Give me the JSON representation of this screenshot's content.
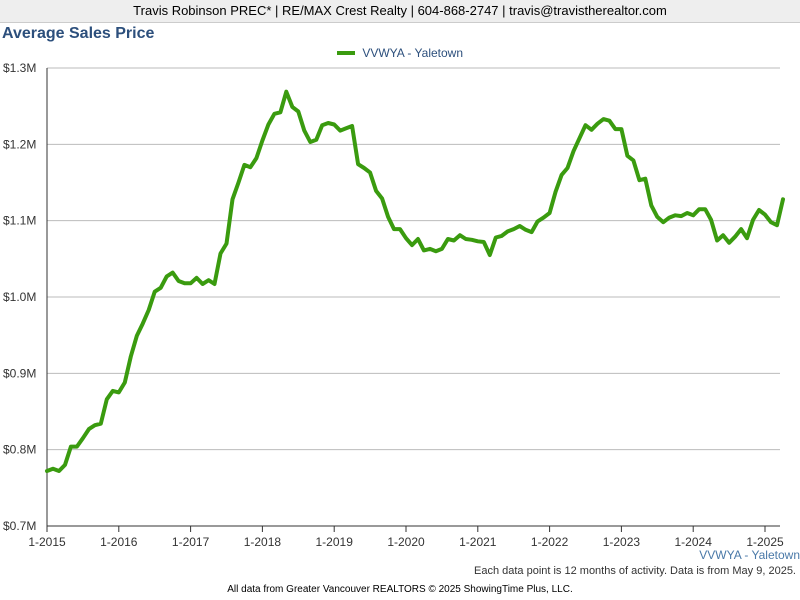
{
  "header": {
    "agent_line": "Travis Robinson PREC* | RE/MAX Crest Realty | 604-868-2747 | travis@travistherealtor.com"
  },
  "footnote": "Each data point is 12 months of activity. Data is from May 9, 2025.",
  "copyright": "All data from Greater Vancouver REALTORS © 2025 ShowingTime Plus, LLC.",
  "series_label": "VVWYA - Yaletown",
  "colors": {
    "series": "#3a9b0f",
    "title": "#2c4f7c",
    "grid": "#bbbbbb",
    "axis": "#333333"
  },
  "chart_data": {
    "type": "line",
    "title": "Average Sales Price",
    "xlabel": "",
    "ylabel": "",
    "legend_position": "top-center",
    "grid": true,
    "ylim": [
      0.7,
      1.3
    ],
    "y_unit": "$M",
    "y_ticks": [
      {
        "value": 0.7,
        "label": "$0.7M"
      },
      {
        "value": 0.8,
        "label": "$0.8M"
      },
      {
        "value": 0.9,
        "label": "$0.9M"
      },
      {
        "value": 1.0,
        "label": "$1.0M"
      },
      {
        "value": 1.1,
        "label": "$1.1M"
      },
      {
        "value": 1.2,
        "label": "$1.2M"
      },
      {
        "value": 1.3,
        "label": "$1.3M"
      }
    ],
    "x_ticks": [
      "1-2015",
      "1-2016",
      "1-2017",
      "1-2018",
      "1-2019",
      "1-2020",
      "1-2021",
      "1-2022",
      "1-2023",
      "1-2024",
      "1-2025"
    ],
    "series": [
      {
        "name": "VVWYA - Yaletown",
        "x": [
          "2015-01",
          "2015-02",
          "2015-03",
          "2015-04",
          "2015-05",
          "2015-06",
          "2015-07",
          "2015-08",
          "2015-09",
          "2015-10",
          "2015-11",
          "2015-12",
          "2016-01",
          "2016-02",
          "2016-03",
          "2016-04",
          "2016-05",
          "2016-06",
          "2016-07",
          "2016-08",
          "2016-09",
          "2016-10",
          "2016-11",
          "2016-12",
          "2017-01",
          "2017-02",
          "2017-03",
          "2017-04",
          "2017-05",
          "2017-06",
          "2017-07",
          "2017-08",
          "2017-09",
          "2017-10",
          "2017-11",
          "2017-12",
          "2018-01",
          "2018-02",
          "2018-03",
          "2018-04",
          "2018-05",
          "2018-06",
          "2018-07",
          "2018-08",
          "2018-09",
          "2018-10",
          "2018-11",
          "2018-12",
          "2019-01",
          "2019-02",
          "2019-03",
          "2019-04",
          "2019-05",
          "2019-06",
          "2019-07",
          "2019-08",
          "2019-09",
          "2019-10",
          "2019-11",
          "2019-12",
          "2020-01",
          "2020-02",
          "2020-03",
          "2020-04",
          "2020-05",
          "2020-06",
          "2020-07",
          "2020-08",
          "2020-09",
          "2020-10",
          "2020-11",
          "2020-12",
          "2021-01",
          "2021-02",
          "2021-03",
          "2021-04",
          "2021-05",
          "2021-06",
          "2021-07",
          "2021-08",
          "2021-09",
          "2021-10",
          "2021-11",
          "2021-12",
          "2022-01",
          "2022-02",
          "2022-03",
          "2022-04",
          "2022-05",
          "2022-06",
          "2022-07",
          "2022-08",
          "2022-09",
          "2022-10",
          "2022-11",
          "2022-12",
          "2023-01",
          "2023-02",
          "2023-03",
          "2023-04",
          "2023-05",
          "2023-06",
          "2023-07",
          "2023-08",
          "2023-09",
          "2023-10",
          "2023-11",
          "2023-12",
          "2024-01",
          "2024-02",
          "2024-03",
          "2024-04",
          "2024-05",
          "2024-06",
          "2024-07",
          "2024-08",
          "2024-09",
          "2024-10",
          "2024-11",
          "2024-12",
          "2025-01",
          "2025-02",
          "2025-03",
          "2025-04"
        ],
        "values": [
          0.772,
          0.775,
          0.772,
          0.78,
          0.804,
          0.804,
          0.815,
          0.827,
          0.832,
          0.834,
          0.866,
          0.877,
          0.875,
          0.888,
          0.922,
          0.949,
          0.965,
          0.983,
          1.007,
          1.012,
          1.027,
          1.032,
          1.021,
          1.018,
          1.018,
          1.025,
          1.017,
          1.022,
          1.017,
          1.057,
          1.07,
          1.128,
          1.15,
          1.173,
          1.17,
          1.182,
          1.205,
          1.226,
          1.24,
          1.242,
          1.269,
          1.249,
          1.243,
          1.218,
          1.203,
          1.206,
          1.225,
          1.228,
          1.226,
          1.218,
          1.221,
          1.224,
          1.174,
          1.169,
          1.163,
          1.139,
          1.129,
          1.105,
          1.089,
          1.089,
          1.077,
          1.068,
          1.076,
          1.061,
          1.063,
          1.06,
          1.063,
          1.076,
          1.074,
          1.081,
          1.076,
          1.075,
          1.073,
          1.072,
          1.055,
          1.078,
          1.08,
          1.086,
          1.089,
          1.093,
          1.088,
          1.085,
          1.099,
          1.104,
          1.11,
          1.138,
          1.16,
          1.169,
          1.191,
          1.208,
          1.225,
          1.219,
          1.227,
          1.233,
          1.231,
          1.22,
          1.22,
          1.185,
          1.179,
          1.153,
          1.155,
          1.12,
          1.105,
          1.098,
          1.104,
          1.107,
          1.106,
          1.11,
          1.107,
          1.115,
          1.115,
          1.101,
          1.074,
          1.081,
          1.071,
          1.079,
          1.089,
          1.077,
          1.101,
          1.114,
          1.108,
          1.098,
          1.094,
          1.128
        ]
      }
    ]
  }
}
